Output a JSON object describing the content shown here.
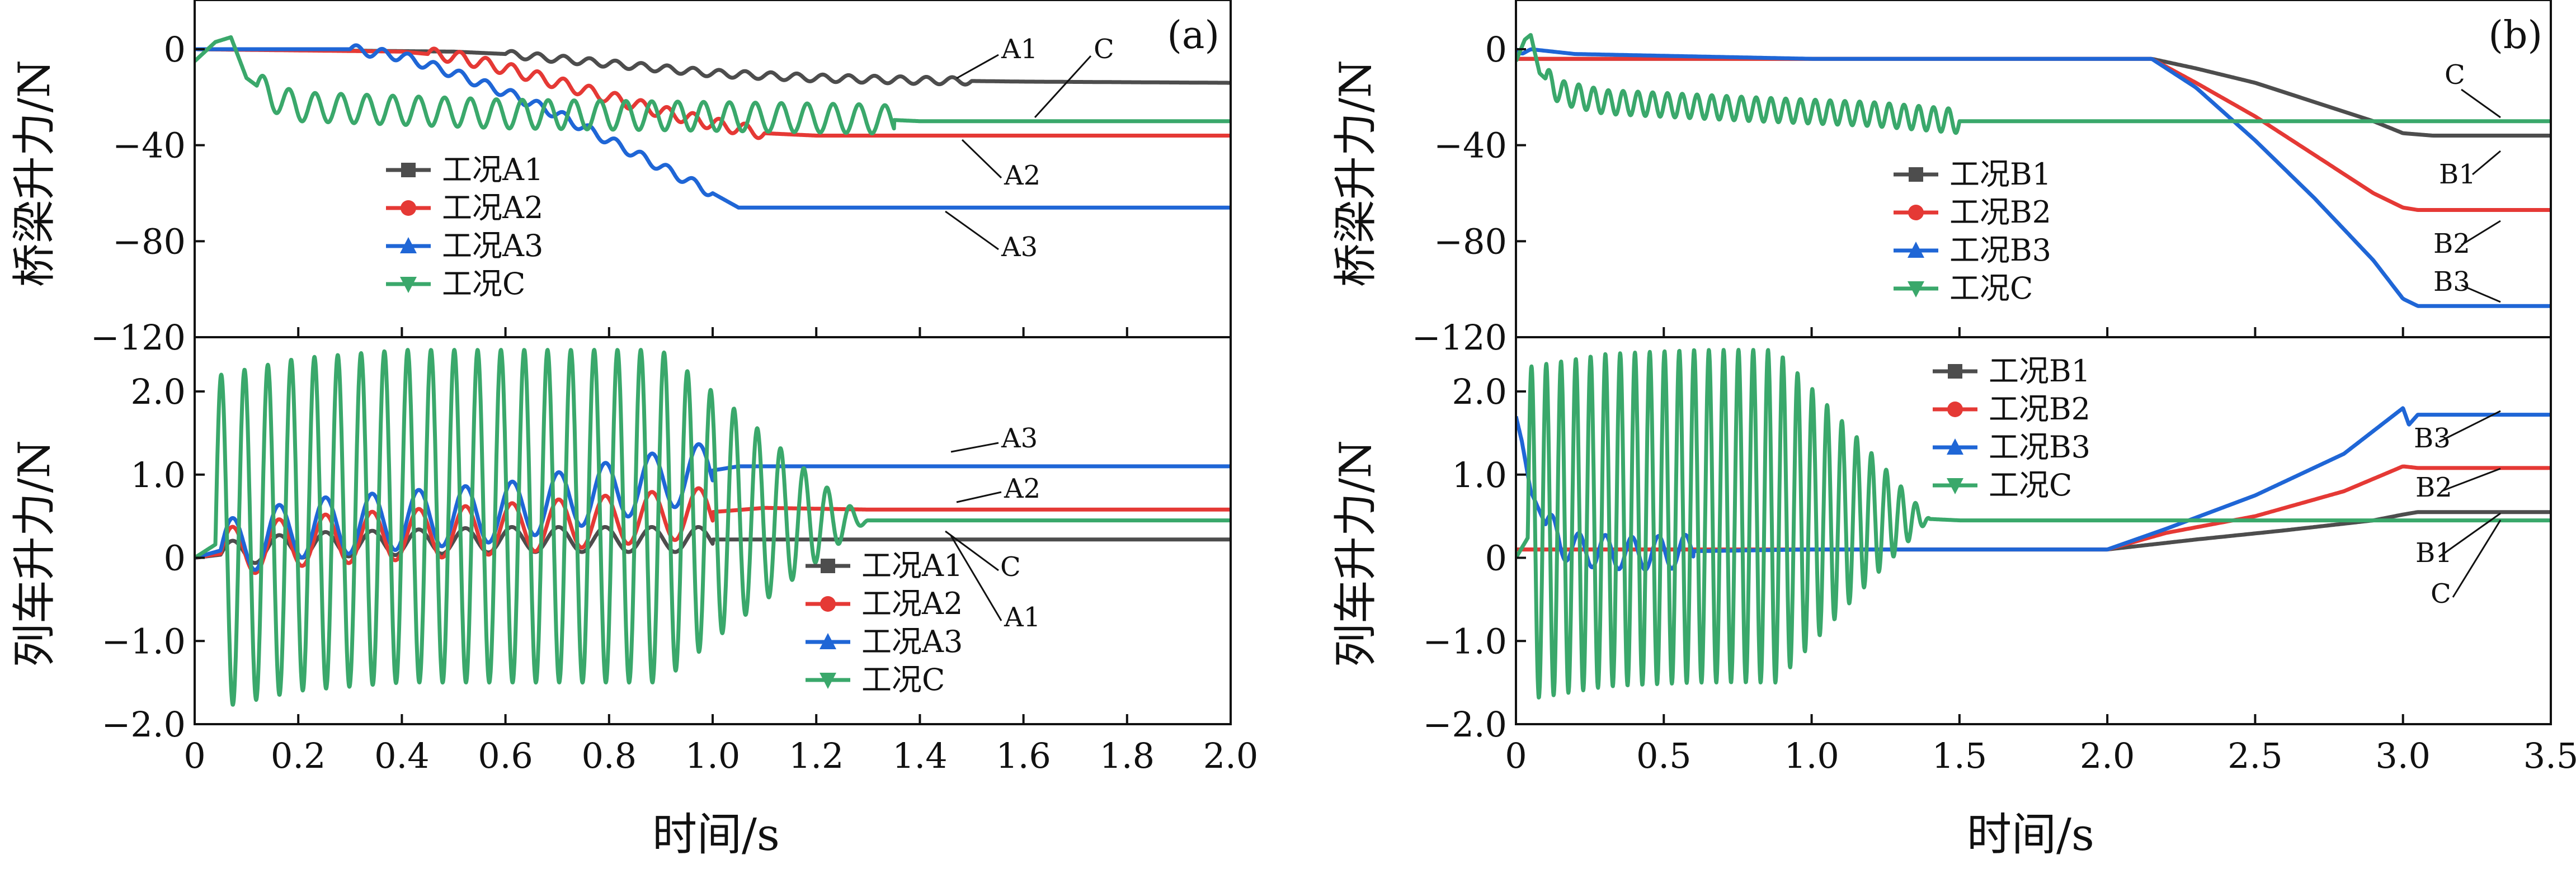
{
  "figure": {
    "x_axis_label_a": "时间/s",
    "x_axis_label_b": "时间/s"
  },
  "chart_data": [
    {
      "id": "a-top",
      "type": "line",
      "panel_label": "(a)",
      "ylabel": "桥梁升力/N",
      "xlim": [
        0,
        2.0
      ],
      "ylim": [
        -120,
        20
      ],
      "xticks": [
        "0",
        "0.2",
        "0.4",
        "0.6",
        "0.8",
        "1.0",
        "1.2",
        "1.4",
        "1.6",
        "1.8",
        "2.0"
      ],
      "xtick_values": [
        0,
        0.2,
        0.4,
        0.6,
        0.8,
        1.0,
        1.2,
        1.4,
        1.6,
        1.8,
        2.0
      ],
      "show_xticklabels": false,
      "yticks": [
        "0",
        "−40",
        "−80",
        "−120"
      ],
      "ytick_values": [
        0,
        -40,
        -80,
        -120
      ],
      "legend": [
        "工况A1",
        "工况A2",
        "工况A3",
        "工况C"
      ],
      "series": [
        {
          "name": "工况A1",
          "color": "#4d4d4d",
          "marker": "square",
          "x": [
            0,
            0.5,
            0.6,
            0.7,
            0.8,
            0.9,
            1.0,
            1.1,
            1.2,
            1.3,
            1.4,
            1.6,
            2.0
          ],
          "y": [
            0,
            -1,
            -2,
            -4,
            -6,
            -8,
            -10,
            -11,
            -12,
            -12.5,
            -13,
            -13.5,
            -14
          ],
          "osc": {
            "from": 0.6,
            "to": 1.5,
            "amp": 1.5,
            "period": 0.05
          }
        },
        {
          "name": "工况A2",
          "color": "#e53935",
          "marker": "circle",
          "x": [
            0,
            0.4,
            0.5,
            0.6,
            0.7,
            0.8,
            0.9,
            1.0,
            1.1,
            1.2,
            1.4,
            2.0
          ],
          "y": [
            0,
            -1,
            -3,
            -8,
            -14,
            -20,
            -26,
            -31,
            -35,
            -36,
            -36,
            -36
          ],
          "osc": {
            "from": 0.45,
            "to": 1.1,
            "amp": 2.5,
            "period": 0.05
          }
        },
        {
          "name": "工况A3",
          "color": "#1f66d6",
          "marker": "triangle-up",
          "x": [
            0,
            0.3,
            0.4,
            0.5,
            0.6,
            0.7,
            0.8,
            0.9,
            1.0,
            1.05,
            1.1,
            1.4,
            2.0
          ],
          "y": [
            0,
            0,
            -3,
            -10,
            -18,
            -27,
            -38,
            -49,
            -60,
            -66,
            -66,
            -66,
            -66
          ],
          "osc": {
            "from": 0.3,
            "to": 1.0,
            "amp": 2.0,
            "period": 0.05
          }
        },
        {
          "name": "工况C",
          "color": "#3aa86b",
          "marker": "triangle-down",
          "x": [
            0,
            0.04,
            0.07,
            0.1,
            0.15,
            0.2,
            0.6,
            1.0,
            1.3,
            1.4,
            1.5,
            2.0
          ],
          "y": [
            -5,
            3,
            5,
            -12,
            -20,
            -24,
            -27,
            -28,
            -29,
            -30,
            -30,
            -30
          ],
          "osc": {
            "from": 0.12,
            "to": 1.35,
            "amp": 6,
            "period": 0.05
          }
        }
      ],
      "annotations": [
        "A1",
        "C",
        "A2",
        "A3"
      ]
    },
    {
      "id": "a-bottom",
      "type": "line",
      "ylabel": "列车升力/N",
      "xlim": [
        0,
        2.0
      ],
      "ylim": [
        -2.0,
        2.0
      ],
      "xticks": [
        "0",
        "0.2",
        "0.4",
        "0.6",
        "0.8",
        "1.0",
        "1.2",
        "1.4",
        "1.6",
        "1.8",
        "2.0"
      ],
      "xtick_values": [
        0,
        0.2,
        0.4,
        0.6,
        0.8,
        1.0,
        1.2,
        1.4,
        1.6,
        1.8,
        2.0
      ],
      "show_xticklabels": true,
      "yticks": [
        "2.0",
        "1.0",
        "0",
        "−1.0",
        "−2.0"
      ],
      "ytick_values": [
        2,
        1,
        0,
        -1,
        -2
      ],
      "legend": [
        "工况A1",
        "工况A2",
        "工况A3",
        "工况C"
      ],
      "series": [
        {
          "name": "工况A1",
          "color": "#4d4d4d",
          "marker": "square",
          "x": [
            0,
            0.2,
            0.6,
            1.0,
            1.2,
            2.0
          ],
          "y": [
            0,
            0.15,
            0.22,
            0.22,
            0.22,
            0.22
          ],
          "osc": {
            "from": 0.05,
            "to": 1.0,
            "amp": 0.15,
            "period": 0.09
          }
        },
        {
          "name": "工况A2",
          "color": "#e53935",
          "marker": "circle",
          "x": [
            0,
            0.2,
            0.6,
            0.9,
            1.1,
            1.3,
            2.0
          ],
          "y": [
            0,
            0.2,
            0.35,
            0.5,
            0.6,
            0.58,
            0.58
          ],
          "osc": {
            "from": 0.05,
            "to": 1.0,
            "amp": 0.3,
            "period": 0.09
          }
        },
        {
          "name": "工况A3",
          "color": "#1f66d6",
          "marker": "triangle-up",
          "x": [
            0,
            0.2,
            0.4,
            0.6,
            0.8,
            1.0,
            1.05,
            1.2,
            2.0
          ],
          "y": [
            0,
            0.35,
            0.45,
            0.55,
            0.8,
            1.05,
            1.1,
            1.1,
            1.1
          ],
          "osc": {
            "from": 0.05,
            "to": 1.0,
            "amp": 0.35,
            "period": 0.09
          }
        },
        {
          "name": "工况C",
          "color": "#3aa86b",
          "marker": "triangle-down",
          "x": [
            0,
            0.05,
            0.2,
            0.4,
            0.6,
            0.8,
            0.95,
            1.05,
            1.2,
            1.4,
            2.0
          ],
          "y": [
            0,
            0.2,
            0.4,
            0.5,
            0.5,
            0.5,
            0.5,
            0.5,
            0.45,
            0.45,
            0.45
          ],
          "osc": {
            "from": 0.04,
            "to": 1.3,
            "amp": 2.0,
            "period": 0.045,
            "decayFrom": 0.9
          }
        }
      ],
      "annotations": [
        "A3",
        "A2",
        "C",
        "A1"
      ]
    },
    {
      "id": "b-top",
      "type": "line",
      "panel_label": "(b)",
      "ylabel": "桥梁升力/N",
      "xlim": [
        0,
        3.5
      ],
      "ylim": [
        -120,
        20
      ],
      "xticks": [
        "0",
        "0.5",
        "1.0",
        "1.5",
        "2.0",
        "2.5",
        "3.0",
        "3.5"
      ],
      "xtick_values": [
        0,
        0.5,
        1.0,
        1.5,
        2.0,
        2.5,
        3.0,
        3.5
      ],
      "show_xticklabels": false,
      "yticks": [
        "0",
        "−40",
        "−80",
        "−120"
      ],
      "ytick_values": [
        0,
        -40,
        -80,
        -120
      ],
      "legend": [
        "工况B1",
        "工况B2",
        "工况B3",
        "工况C"
      ],
      "series": [
        {
          "name": "工况B1",
          "color": "#4d4d4d",
          "marker": "square",
          "x": [
            0,
            2.15,
            2.3,
            2.5,
            2.7,
            2.9,
            3.0,
            3.1,
            3.5
          ],
          "y": [
            -4,
            -4,
            -8,
            -14,
            -22,
            -30,
            -35,
            -36,
            -36
          ]
        },
        {
          "name": "工况B2",
          "color": "#e53935",
          "marker": "circle",
          "x": [
            0,
            2.15,
            2.3,
            2.5,
            2.7,
            2.9,
            3.0,
            3.05,
            3.5
          ],
          "y": [
            -4,
            -4,
            -14,
            -28,
            -44,
            -60,
            -66,
            -67,
            -67
          ]
        },
        {
          "name": "工况B3",
          "color": "#1f66d6",
          "marker": "triangle-up",
          "x": [
            0,
            0.02,
            0.05,
            0.2,
            1.0,
            2.15,
            2.3,
            2.5,
            2.7,
            2.9,
            3.0,
            3.05,
            3.5
          ],
          "y": [
            0,
            -2,
            0,
            -2,
            -4,
            -4,
            -16,
            -38,
            -62,
            -88,
            -104,
            -107,
            -107
          ]
        },
        {
          "name": "工况C",
          "color": "#3aa86b",
          "marker": "triangle-down",
          "x": [
            0,
            0.03,
            0.05,
            0.08,
            0.15,
            0.3,
            0.8,
            1.2,
            1.5,
            2.0,
            3.5
          ],
          "y": [
            -5,
            4,
            6,
            -10,
            -18,
            -22,
            -25,
            -27,
            -30,
            -30,
            -30
          ],
          "osc": {
            "from": 0.1,
            "to": 1.5,
            "amp": 5,
            "period": 0.05
          }
        }
      ],
      "annotations": [
        "C",
        "B1",
        "B2",
        "B3"
      ]
    },
    {
      "id": "b-bottom",
      "type": "line",
      "ylabel": "列车升力/N",
      "xlim": [
        0,
        3.5
      ],
      "ylim": [
        -2.0,
        2.0
      ],
      "xticks": [
        "0",
        "0.5",
        "1.0",
        "1.5",
        "2.0",
        "2.5",
        "3.0",
        "3.5"
      ],
      "xtick_values": [
        0,
        0.5,
        1.0,
        1.5,
        2.0,
        2.5,
        3.0,
        3.5
      ],
      "show_xticklabels": true,
      "yticks": [
        "2.0",
        "1.0",
        "0",
        "−1.0",
        "−2.0"
      ],
      "ytick_values": [
        2,
        1,
        0,
        -1,
        -2
      ],
      "legend": [
        "工况B1",
        "工况B2",
        "工况B3",
        "工况C"
      ],
      "series": [
        {
          "name": "工况B1",
          "color": "#4d4d4d",
          "marker": "square",
          "x": [
            0,
            2.0,
            2.3,
            2.6,
            2.9,
            3.0,
            3.05,
            3.5
          ],
          "y": [
            0.1,
            0.1,
            0.22,
            0.33,
            0.45,
            0.52,
            0.55,
            0.55
          ]
        },
        {
          "name": "工况B2",
          "color": "#e53935",
          "marker": "circle",
          "x": [
            0,
            2.0,
            2.2,
            2.5,
            2.8,
            3.0,
            3.05,
            3.5
          ],
          "y": [
            0.1,
            0.1,
            0.3,
            0.5,
            0.8,
            1.1,
            1.08,
            1.08
          ]
        },
        {
          "name": "工况B3",
          "color": "#1f66d6",
          "marker": "triangle-up",
          "x": [
            0,
            0.02,
            0.05,
            0.1,
            0.15,
            0.2,
            0.4,
            0.6,
            1.0,
            2.0,
            2.2,
            2.5,
            2.8,
            3.0,
            3.02,
            3.05,
            3.5
          ],
          "y": [
            1.7,
            1.4,
            0.8,
            0.4,
            0.2,
            0.1,
            0.05,
            0.08,
            0.1,
            0.1,
            0.35,
            0.75,
            1.25,
            1.8,
            1.6,
            1.72,
            1.72
          ],
          "osc": {
            "from": 0.1,
            "to": 0.6,
            "amp": 0.2,
            "period": 0.09
          }
        },
        {
          "name": "工况C",
          "color": "#3aa86b",
          "marker": "triangle-down",
          "x": [
            0,
            0.05,
            0.3,
            0.6,
            0.9,
            1.2,
            1.5,
            2.0,
            3.5
          ],
          "y": [
            0,
            0.3,
            0.45,
            0.5,
            0.5,
            0.5,
            0.45,
            0.45,
            0.45
          ],
          "osc": {
            "from": 0.04,
            "to": 1.4,
            "amp": 2.0,
            "period": 0.05,
            "decayFrom": 0.88
          }
        }
      ],
      "annotations": [
        "B3",
        "B2",
        "B1",
        "C"
      ]
    }
  ]
}
